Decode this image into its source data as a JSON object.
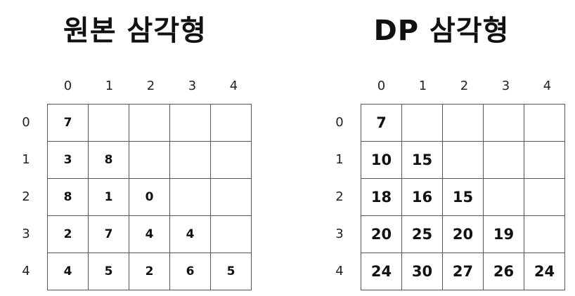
{
  "left": {
    "title": "원본 삼각형",
    "col_labels": [
      "0",
      "1",
      "2",
      "3",
      "4"
    ],
    "row_labels": [
      "0",
      "1",
      "2",
      "3",
      "4"
    ],
    "rows": [
      [
        "7",
        "",
        "",
        "",
        ""
      ],
      [
        "3",
        "8",
        "",
        "",
        ""
      ],
      [
        "8",
        "1",
        "0",
        "",
        ""
      ],
      [
        "2",
        "7",
        "4",
        "4",
        ""
      ],
      [
        "4",
        "5",
        "2",
        "6",
        "5"
      ]
    ]
  },
  "right": {
    "title": "DP 삼각형",
    "col_labels": [
      "0",
      "1",
      "2",
      "3",
      "4"
    ],
    "row_labels": [
      "0",
      "1",
      "2",
      "3",
      "4"
    ],
    "rows": [
      [
        "7",
        "",
        "",
        "",
        ""
      ],
      [
        "10",
        "15",
        "",
        "",
        ""
      ],
      [
        "18",
        "16",
        "15",
        "",
        ""
      ],
      [
        "20",
        "25",
        "20",
        "19",
        ""
      ],
      [
        "24",
        "30",
        "27",
        "26",
        "24"
      ]
    ]
  }
}
